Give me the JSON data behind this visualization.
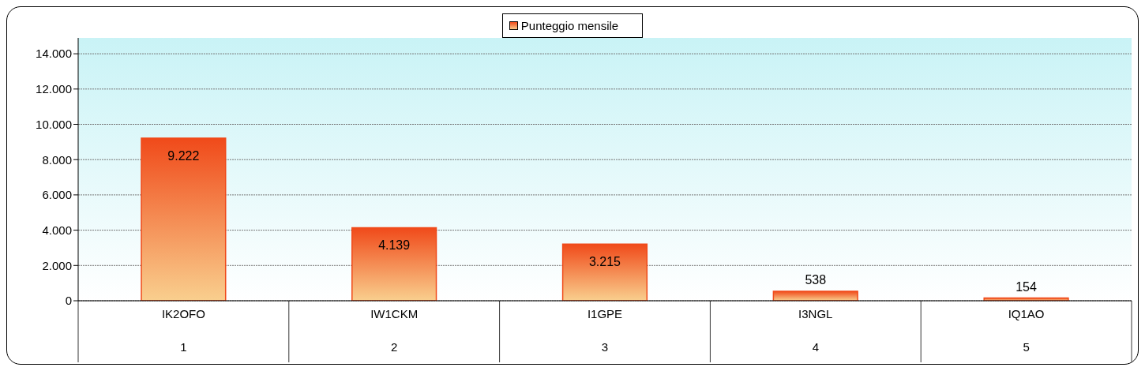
{
  "chart_data": {
    "type": "bar",
    "categories": [
      "IK2OFO\n1",
      "IW1CKM\n2",
      "I1GPE\n3",
      "I3NGL\n4",
      "IQ1AO\n5"
    ],
    "series": [
      {
        "name": "Punteggio mensile",
        "color": "#f04a1a",
        "values": [
          9222,
          4139,
          3215,
          538,
          154
        ],
        "value_labels": [
          "9.222",
          "4.139",
          "3.215",
          "538",
          "154"
        ]
      }
    ],
    "ylim": [
      0,
      14900
    ],
    "yticks": [
      {
        "value": 0,
        "label": "0"
      },
      {
        "value": 2000,
        "label": "2.000"
      },
      {
        "value": 4000,
        "label": "4.000"
      },
      {
        "value": 6000,
        "label": "6.000"
      },
      {
        "value": 8000,
        "label": "8.000"
      },
      {
        "value": 10000,
        "label": "10.000"
      },
      {
        "value": 12000,
        "label": "12.000"
      },
      {
        "value": 14000,
        "label": "14.000"
      }
    ],
    "grid": "y",
    "legend": "top"
  }
}
